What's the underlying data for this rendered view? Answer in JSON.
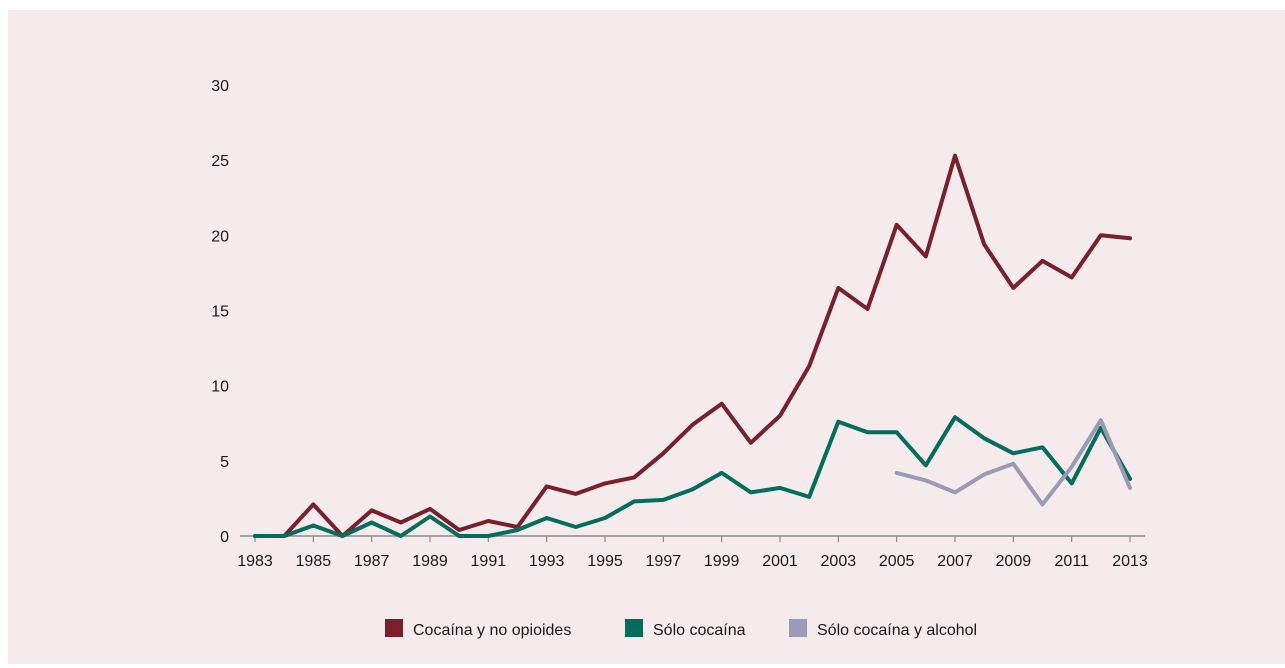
{
  "chart_data": {
    "type": "line",
    "title": "",
    "xlabel": "",
    "ylabel": "",
    "xlim": [
      1983,
      2013
    ],
    "ylim": [
      0,
      30
    ],
    "y_ticks": [
      0,
      5,
      10,
      15,
      20,
      25,
      30
    ],
    "x_ticks": [
      1983,
      1985,
      1987,
      1989,
      1991,
      1993,
      1995,
      1997,
      1999,
      2001,
      2003,
      2005,
      2007,
      2009,
      2011,
      2013
    ],
    "grid": false,
    "legend_position": "bottom",
    "series": [
      {
        "name": "Cocaína y no opioides",
        "color": "#7a1f2b",
        "x": [
          1983,
          1984,
          1985,
          1986,
          1987,
          1988,
          1989,
          1990,
          1991,
          1992,
          1993,
          1994,
          1995,
          1996,
          1997,
          1998,
          1999,
          2000,
          2001,
          2002,
          2003,
          2004,
          2005,
          2006,
          2007,
          2008,
          2009,
          2010,
          2011,
          2012,
          2013
        ],
        "values": [
          0,
          0,
          2.1,
          0,
          1.7,
          0.9,
          1.8,
          0.4,
          1.0,
          0.6,
          3.3,
          2.8,
          3.5,
          3.9,
          5.5,
          7.4,
          8.8,
          6.2,
          8.0,
          11.3,
          16.5,
          15.1,
          20.7,
          18.6,
          25.3,
          19.4,
          16.5,
          18.3,
          17.2,
          20.0,
          19.8
        ]
      },
      {
        "name": "Sólo cocaína",
        "color": "#006e5a",
        "x": [
          1983,
          1984,
          1985,
          1986,
          1987,
          1988,
          1989,
          1990,
          1991,
          1992,
          1993,
          1994,
          1995,
          1996,
          1997,
          1998,
          1999,
          2000,
          2001,
          2002,
          2003,
          2004,
          2005,
          2006,
          2007,
          2008,
          2009,
          2010,
          2011,
          2012,
          2013
        ],
        "values": [
          0,
          0,
          0.7,
          0,
          0.9,
          0,
          1.3,
          0,
          0,
          0.4,
          1.2,
          0.6,
          1.2,
          2.3,
          2.4,
          3.1,
          4.2,
          2.9,
          3.2,
          2.6,
          7.6,
          6.9,
          6.9,
          4.7,
          7.9,
          6.5,
          5.5,
          5.9,
          3.5,
          7.2,
          3.8
        ]
      },
      {
        "name": "Sólo cocaína y alcohol",
        "color": "#9a9ab4",
        "x": [
          2005,
          2006,
          2007,
          2008,
          2009,
          2010,
          2011,
          2012,
          2013
        ],
        "values": [
          4.2,
          3.7,
          2.9,
          4.1,
          4.8,
          2.1,
          4.6,
          7.7,
          3.2
        ]
      }
    ]
  },
  "axis_color": "#8a8a8a"
}
